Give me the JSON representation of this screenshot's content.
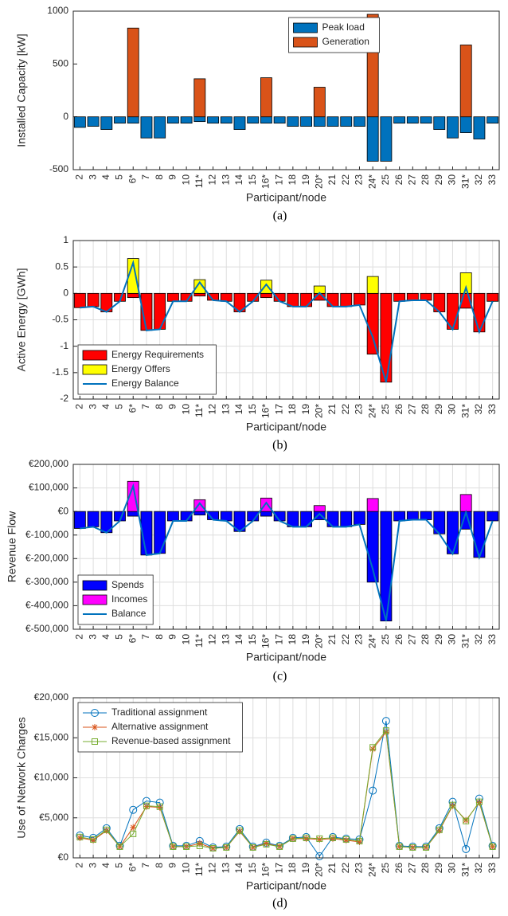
{
  "chart_data": [
    {
      "type": "bar",
      "caption": "(a)",
      "ylabel": "Installed Capacity [kW]",
      "xlabel": "Participant/node",
      "categories": [
        "2",
        "3",
        "4",
        "5",
        "6*",
        "7",
        "8",
        "9",
        "10",
        "11*",
        "12",
        "13",
        "14",
        "15",
        "16*",
        "17",
        "18",
        "19",
        "20*",
        "21",
        "22",
        "23",
        "24*",
        "25",
        "26",
        "27",
        "28",
        "29",
        "30",
        "31*",
        "32",
        "33"
      ],
      "series": [
        {
          "name": "Peak load",
          "color": "#0072bd",
          "style": "bar",
          "values": [
            -100,
            -90,
            -120,
            -60,
            -60,
            -200,
            -200,
            -60,
            -60,
            -45,
            -60,
            -60,
            -120,
            -60,
            -60,
            -60,
            -90,
            -90,
            -90,
            -90,
            -90,
            -90,
            -420,
            -420,
            -60,
            -60,
            -60,
            -120,
            -200,
            -150,
            -210,
            -60
          ]
        },
        {
          "name": "Generation",
          "color": "#d95319",
          "style": "bar",
          "values": [
            null,
            null,
            null,
            null,
            840,
            null,
            null,
            null,
            null,
            360,
            null,
            null,
            null,
            null,
            370,
            null,
            null,
            null,
            280,
            null,
            null,
            null,
            970,
            null,
            null,
            null,
            null,
            null,
            null,
            680,
            null,
            null
          ]
        }
      ],
      "ylim": [
        -500,
        1000
      ],
      "yticks": [
        -500,
        0,
        500,
        1000
      ],
      "grid": false,
      "legend": "north"
    },
    {
      "type": "bar",
      "caption": "(b)",
      "ylabel": "Active Energy [GWh]",
      "xlabel": "Participant/node",
      "categories": [
        "2",
        "3",
        "4",
        "5",
        "6*",
        "7",
        "8",
        "9",
        "10",
        "11*",
        "12",
        "13",
        "14",
        "15",
        "16*",
        "17",
        "18",
        "19",
        "20*",
        "21",
        "22",
        "23",
        "24*",
        "25",
        "26",
        "27",
        "28",
        "29",
        "30",
        "31*",
        "32",
        "33"
      ],
      "series": [
        {
          "name": "Energy Requirements",
          "color": "#ff0000",
          "style": "bar",
          "values": [
            -0.27,
            -0.25,
            -0.35,
            -0.15,
            -0.08,
            -0.7,
            -0.68,
            -0.15,
            -0.15,
            -0.05,
            -0.13,
            -0.15,
            -0.35,
            -0.15,
            -0.08,
            -0.15,
            -0.25,
            -0.25,
            -0.13,
            -0.25,
            -0.25,
            -0.22,
            -1.15,
            -1.68,
            -0.15,
            -0.13,
            -0.13,
            -0.35,
            -0.68,
            -0.28,
            -0.73,
            -0.15
          ]
        },
        {
          "name": "Energy Offers",
          "color": "#ffff00",
          "style": "bar",
          "values": [
            null,
            null,
            null,
            null,
            0.66,
            null,
            null,
            null,
            null,
            0.26,
            null,
            null,
            null,
            null,
            0.25,
            null,
            null,
            null,
            0.14,
            null,
            null,
            null,
            0.32,
            null,
            null,
            null,
            null,
            null,
            null,
            0.39,
            null,
            null
          ]
        },
        {
          "name": "Energy Balance",
          "color": "#0072bd",
          "style": "line",
          "values": [
            -0.27,
            -0.25,
            -0.35,
            -0.15,
            0.58,
            -0.7,
            -0.68,
            -0.15,
            -0.15,
            0.21,
            -0.13,
            -0.15,
            -0.35,
            -0.15,
            0.17,
            -0.15,
            -0.25,
            -0.25,
            0.01,
            -0.25,
            -0.25,
            -0.22,
            -0.83,
            -1.68,
            -0.15,
            -0.13,
            -0.13,
            -0.35,
            -0.68,
            0.11,
            -0.73,
            -0.15
          ]
        }
      ],
      "ylim": [
        -2,
        1
      ],
      "yticks": [
        -2,
        -1.5,
        -1,
        -0.5,
        0,
        0.5,
        1
      ],
      "grid": true,
      "legend": "southwest"
    },
    {
      "type": "bar",
      "caption": "(c)",
      "ylabel": "Revenue Flow",
      "xlabel": "Participant/node",
      "categories": [
        "2",
        "3",
        "4",
        "5",
        "6*",
        "7",
        "8",
        "9",
        "10",
        "11*",
        "12",
        "13",
        "14",
        "15",
        "16*",
        "17",
        "18",
        "19",
        "20*",
        "21",
        "22",
        "23",
        "24*",
        "25",
        "26",
        "27",
        "28",
        "29",
        "30",
        "31*",
        "32",
        "33"
      ],
      "series": [
        {
          "name": "Spends",
          "color": "#0000ff",
          "style": "bar",
          "values": [
            -72000,
            -65000,
            -90000,
            -40000,
            -20000,
            -185000,
            -178000,
            -40000,
            -40000,
            -15000,
            -35000,
            -40000,
            -85000,
            -40000,
            -20000,
            -40000,
            -65000,
            -65000,
            -35000,
            -65000,
            -65000,
            -55000,
            -300000,
            -465000,
            -40000,
            -35000,
            -35000,
            -95000,
            -180000,
            -75000,
            -195000,
            -40000
          ]
        },
        {
          "name": "Incomes",
          "color": "#ff00ff",
          "style": "bar",
          "values": [
            null,
            null,
            null,
            null,
            128000,
            null,
            null,
            null,
            null,
            50000,
            null,
            null,
            null,
            null,
            57000,
            null,
            null,
            null,
            25000,
            null,
            null,
            null,
            55000,
            null,
            null,
            null,
            null,
            null,
            null,
            72000,
            null,
            null
          ]
        },
        {
          "name": "Balance",
          "color": "#0072bd",
          "style": "line",
          "values": [
            -72000,
            -65000,
            -90000,
            -40000,
            108000,
            -185000,
            -178000,
            -40000,
            -40000,
            35000,
            -35000,
            -40000,
            -85000,
            -40000,
            37000,
            -40000,
            -65000,
            -65000,
            -10000,
            -65000,
            -65000,
            -55000,
            -245000,
            -465000,
            -40000,
            -35000,
            -35000,
            -95000,
            -180000,
            -3000,
            -195000,
            -40000
          ]
        }
      ],
      "ylim": [
        -500000,
        200000
      ],
      "yticks": [
        {
          "value": -500000,
          "label": "€-500,000"
        },
        {
          "value": -400000,
          "label": "€-400,000"
        },
        {
          "value": -300000,
          "label": "€-300,000"
        },
        {
          "value": -200000,
          "label": "€-200,000"
        },
        {
          "value": -100000,
          "label": "€-100,000"
        },
        {
          "value": 0,
          "label": "€0"
        },
        {
          "value": 100000,
          "label": "€100,000"
        },
        {
          "value": 200000,
          "label": "€200,000"
        }
      ],
      "grid": true,
      "legend": "southwest"
    },
    {
      "type": "line",
      "caption": "(d)",
      "ylabel": "Use of Network Charges",
      "xlabel": "Participant/node",
      "categories": [
        "2",
        "3",
        "4",
        "5",
        "6*",
        "7",
        "8",
        "9",
        "10",
        "11*",
        "12",
        "13",
        "14",
        "15",
        "16*",
        "17",
        "18",
        "19",
        "20*",
        "21",
        "22",
        "23",
        "24*",
        "25",
        "26",
        "27",
        "28",
        "29",
        "30",
        "31*",
        "32",
        "33"
      ],
      "series": [
        {
          "name": "Traditional assignment",
          "color": "#0072bd",
          "marker": "circle",
          "values": [
            2800,
            2500,
            3700,
            1500,
            6000,
            7100,
            6900,
            1500,
            1500,
            2100,
            1300,
            1400,
            3600,
            1400,
            1900,
            1500,
            2500,
            2600,
            200,
            2600,
            2400,
            2300,
            8400,
            17100,
            1500,
            1400,
            1400,
            3700,
            7000,
            1100,
            7400,
            1500
          ]
        },
        {
          "name": "Alternative assignment",
          "color": "#d95319",
          "marker": "asterisk",
          "values": [
            2500,
            2200,
            3400,
            1400,
            3800,
            6400,
            6300,
            1400,
            1400,
            1800,
            1200,
            1300,
            3300,
            1300,
            1800,
            1400,
            2400,
            2400,
            2300,
            2400,
            2200,
            2000,
            13600,
            15700,
            1400,
            1300,
            1300,
            3400,
            6500,
            4700,
            6900,
            1400
          ]
        },
        {
          "name": "Revenue-based assignment",
          "color": "#77ac30",
          "marker": "square",
          "values": [
            2600,
            2300,
            3500,
            1400,
            3000,
            6500,
            6400,
            1400,
            1400,
            1500,
            1200,
            1300,
            3400,
            1300,
            1700,
            1400,
            2400,
            2500,
            2400,
            2500,
            2300,
            2100,
            13800,
            15900,
            1400,
            1300,
            1300,
            3500,
            6600,
            4600,
            7000,
            1400
          ]
        }
      ],
      "ylim": [
        0,
        20000
      ],
      "yticks": [
        {
          "value": 0,
          "label": "€0"
        },
        {
          "value": 5000,
          "label": "€5,000"
        },
        {
          "value": 10000,
          "label": "€10,000"
        },
        {
          "value": 15000,
          "label": "€15,000"
        },
        {
          "value": 20000,
          "label": "€20,000"
        }
      ],
      "grid": true,
      "legend": "northwest"
    }
  ]
}
